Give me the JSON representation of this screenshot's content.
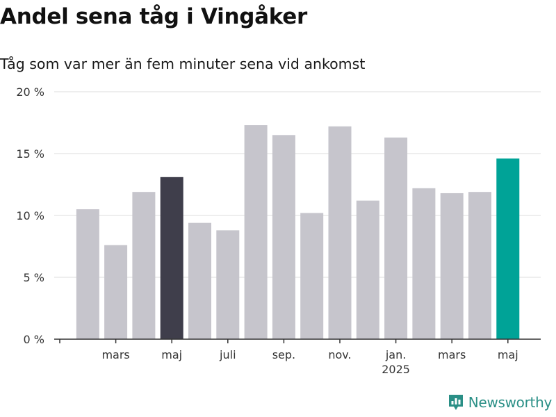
{
  "header": {
    "title": "Andel sena tåg i Vingåker",
    "subtitle": "Tåg som var mer än fem minuter sena vid ankomst"
  },
  "brand": {
    "name": "Newsworthy",
    "icon": "newsworthy-logo-icon"
  },
  "colors": {
    "bar_default": "#c6c5cc",
    "bar_highlight": "#3f3e4b",
    "bar_latest": "#00a397",
    "grid": "#dddddd",
    "axis": "#333333",
    "brand": "#2a8f86"
  },
  "chart_data": {
    "type": "bar",
    "title": "Andel sena tåg i Vingåker",
    "subtitle": "Tåg som var mer än fem minuter sena vid ankomst",
    "x": [
      "2024-02",
      "2024-03",
      "2024-04",
      "2024-05",
      "2024-06",
      "2024-07",
      "2024-08",
      "2024-09",
      "2024-10",
      "2024-11",
      "2024-12",
      "2025-01",
      "2025-02",
      "2025-03",
      "2025-04",
      "2025-05"
    ],
    "values": [
      10.5,
      7.6,
      11.9,
      13.1,
      9.4,
      8.8,
      17.3,
      16.5,
      10.2,
      17.2,
      11.2,
      16.3,
      12.2,
      11.8,
      11.9,
      14.6
    ],
    "highlight": {
      "2024-05": "bar_highlight",
      "2025-05": "bar_latest"
    },
    "ylim": [
      0,
      20
    ],
    "y_ticks": [
      0,
      5,
      10,
      15,
      20
    ],
    "y_tick_labels": [
      "0 %",
      "5 %",
      "10 %",
      "15 %",
      "20 %"
    ],
    "x_tick_labels": [
      {
        "label": "mars",
        "sub": "",
        "at": "2024-03"
      },
      {
        "label": "maj",
        "sub": "",
        "at": "2024-05"
      },
      {
        "label": "juli",
        "sub": "",
        "at": "2024-07"
      },
      {
        "label": "sep.",
        "sub": "",
        "at": "2024-09"
      },
      {
        "label": "nov.",
        "sub": "",
        "at": "2024-11"
      },
      {
        "label": "jan.",
        "sub": "2025",
        "at": "2025-01"
      },
      {
        "label": "mars",
        "sub": "",
        "at": "2025-03"
      },
      {
        "label": "maj",
        "sub": "",
        "at": "2025-05"
      }
    ],
    "grid": true,
    "legend": "none"
  }
}
